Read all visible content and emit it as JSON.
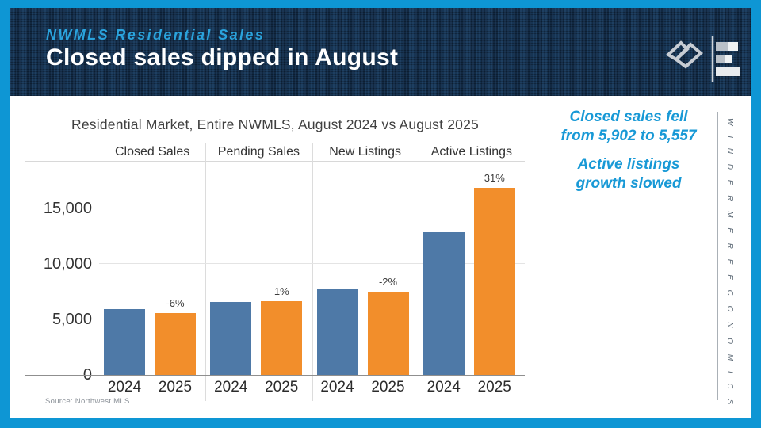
{
  "header": {
    "kicker": "NWMLS Residential Sales",
    "title": "Closed sales dipped in August"
  },
  "icons": {
    "brand_mark": "windermere-w-diamond-logo",
    "econ_mark": "horizontal-bar-chart-logo"
  },
  "annotations": {
    "note1": "Closed sales fell from 5,902 to 5,557",
    "note2": "Active listings growth slowed",
    "color": "#1899d6"
  },
  "sidebar": {
    "vertical_text": "W I N D E R M E R E   E C O N O M I C S"
  },
  "source": "Source: Northwest MLS",
  "colors": {
    "frame_accent": "#0e96d4",
    "header_bg": "#132c47",
    "kicker_blue": "#2aa3dc",
    "bar_2024": "#4e79a7",
    "bar_2025": "#f28e2b"
  },
  "chart_data": {
    "type": "bar",
    "title": "Residential Market, Entire NWMLS, August 2024 vs August 2025",
    "groups": [
      "Closed Sales",
      "Pending Sales",
      "New Listings",
      "Active Listings"
    ],
    "series": [
      {
        "name": "2024",
        "color": "#4e79a7",
        "values": [
          5902,
          6600,
          7700,
          12900
        ]
      },
      {
        "name": "2025",
        "color": "#f28e2b",
        "values": [
          5557,
          6670,
          7540,
          16900
        ]
      }
    ],
    "pct_labels": [
      "-6%",
      "1%",
      "-2%",
      "31%"
    ],
    "x_tick_labels": [
      "2024",
      "2025"
    ],
    "y_ticks": [
      0,
      5000,
      10000,
      15000
    ],
    "y_tick_labels": [
      "0",
      "5,000",
      "10,000",
      "15,000"
    ],
    "ylim": [
      0,
      19300
    ],
    "grid": true,
    "legend": "none"
  }
}
